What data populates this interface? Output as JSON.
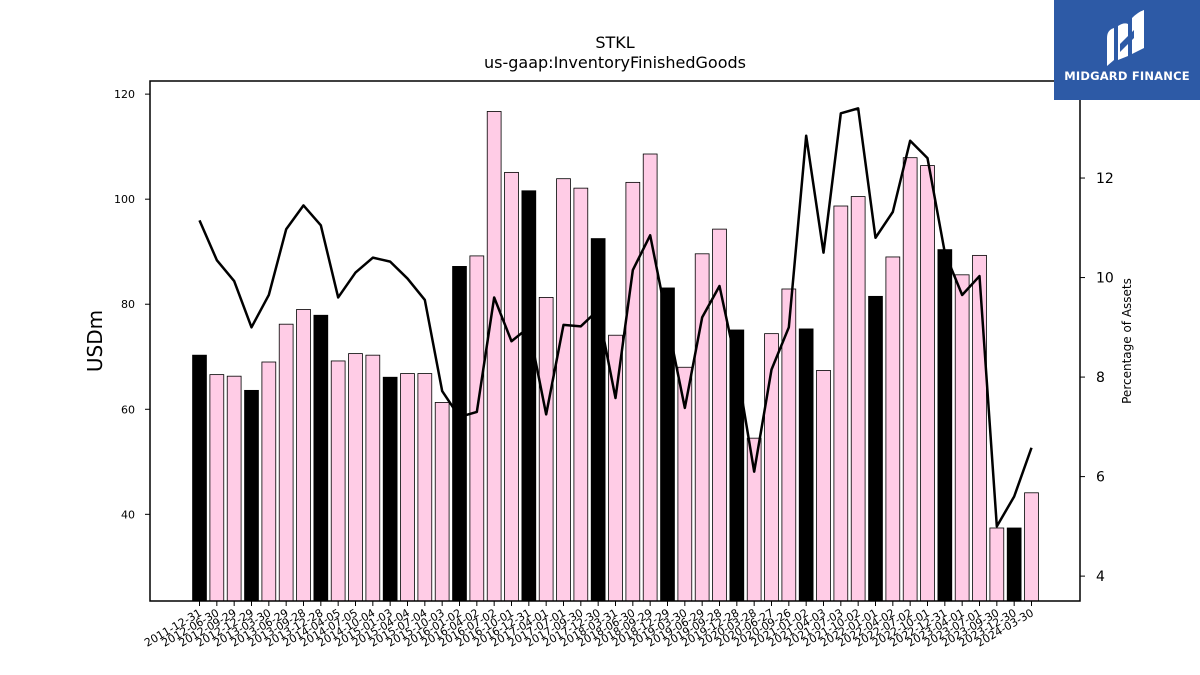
{
  "chart_data": {
    "type": "bar",
    "title": "STKL",
    "subtitle": "us-gaap:InventoryFinishedGoods",
    "ylabel": "USDm",
    "y2label": "Percentage of Assets",
    "ylim": [
      23.5,
      122.5
    ],
    "y2lim": [
      3.5,
      13.95
    ],
    "yticks": [
      40,
      60,
      80,
      100,
      120
    ],
    "y2ticks": [
      4,
      6,
      8,
      10,
      12
    ],
    "colors": {
      "annual": "#000000",
      "quarter": "#ffcce6",
      "edge": "#000000",
      "line": "#000000"
    },
    "categories": [
      "2011-12-31",
      "2012-06-30",
      "2012-09-29",
      "2012-12-29",
      "2013-03-30",
      "2013-06-29",
      "2013-09-28",
      "2013-12-28",
      "2014-04-05",
      "2014-07-05",
      "2014-10-04",
      "2015-01-03",
      "2015-04-04",
      "2015-07-04",
      "2015-10-03",
      "2016-01-02",
      "2016-04-02",
      "2016-07-02",
      "2016-10-01",
      "2016-12-31",
      "2017-04-01",
      "2017-07-01",
      "2017-09-30",
      "2017-12-30",
      "2018-03-31",
      "2018-06-30",
      "2018-09-29",
      "2018-12-29",
      "2019-03-30",
      "2019-06-29",
      "2019-09-28",
      "2019-12-28",
      "2020-03-28",
      "2020-06-27",
      "2020-09-26",
      "2021-01-02",
      "2021-04-03",
      "2021-07-03",
      "2021-10-02",
      "2022-01-01",
      "2022-04-02",
      "2022-07-02",
      "2022-10-01",
      "2022-12-31",
      "2023-04-01",
      "2023-07-01",
      "2023-09-30",
      "2023-12-30",
      "2024-03-30"
    ],
    "series": [
      {
        "kind": "bar",
        "values": [
          70.3,
          66.6,
          66.3,
          63.6,
          69.0,
          76.2,
          79.0,
          77.9,
          69.2,
          70.6,
          70.3,
          66.1,
          66.8,
          66.8,
          61.3,
          87.2,
          89.2,
          116.7,
          105.1,
          101.6,
          81.3,
          103.9,
          102.1,
          92.5,
          74.1,
          103.2,
          108.6,
          83.1,
          68.0,
          89.6,
          94.3,
          75.1,
          54.5,
          74.4,
          82.9,
          75.3,
          67.4,
          98.7,
          100.5,
          81.5,
          89.0,
          107.9,
          106.4,
          90.4,
          85.6,
          89.3,
          37.4,
          37.4,
          44.1
        ],
        "annual": [
          true,
          false,
          false,
          true,
          false,
          false,
          false,
          true,
          false,
          false,
          false,
          true,
          false,
          false,
          false,
          true,
          false,
          false,
          false,
          true,
          false,
          false,
          false,
          true,
          false,
          false,
          false,
          true,
          false,
          false,
          false,
          true,
          false,
          false,
          false,
          true,
          false,
          false,
          false,
          true,
          false,
          false,
          false,
          true,
          false,
          false,
          false,
          true,
          false
        ]
      },
      {
        "kind": "line",
        "axis": "right",
        "values": [
          11.15,
          10.35,
          9.93,
          9.0,
          9.65,
          10.97,
          11.45,
          11.05,
          9.6,
          10.1,
          10.4,
          10.32,
          9.98,
          9.55,
          7.72,
          7.2,
          7.3,
          9.6,
          8.72,
          9.0,
          7.25,
          9.05,
          9.02,
          9.35,
          7.58,
          10.15,
          10.85,
          9.1,
          7.38,
          9.2,
          9.83,
          8.2,
          6.1,
          8.15,
          9.0,
          12.85,
          10.5,
          13.3,
          13.4,
          10.8,
          11.32,
          12.75,
          12.4,
          10.5,
          9.65,
          10.03,
          5.0,
          5.6,
          6.58
        ]
      }
    ]
  },
  "logo": {
    "text": "MIDGARD FINANCE",
    "color": "#2d5aa6"
  }
}
